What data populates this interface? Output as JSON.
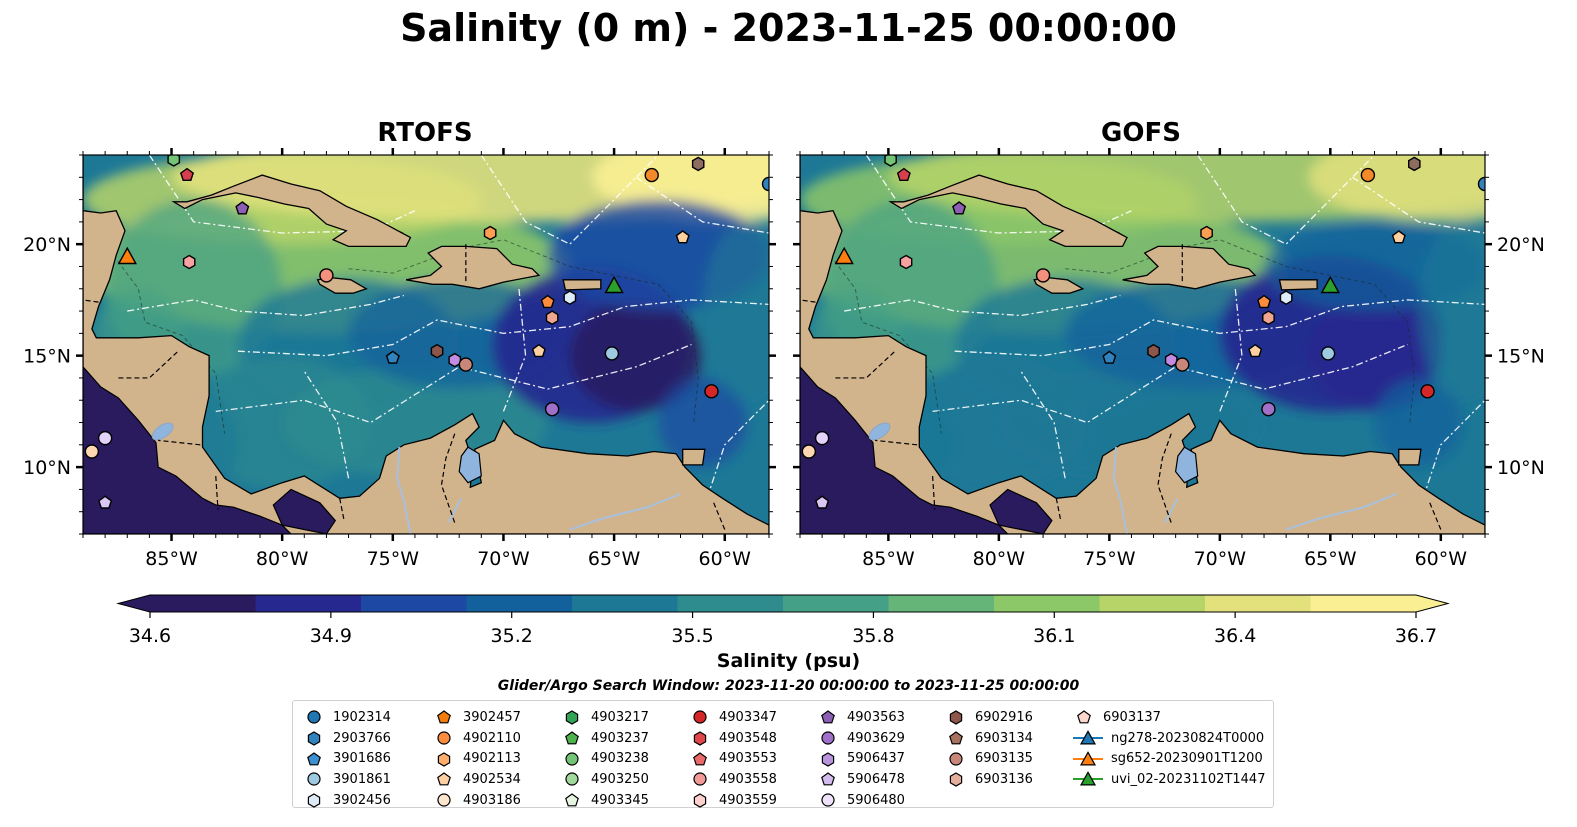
{
  "title": "Salinity (0 m) - 2023-11-25 00:00:00",
  "panels": [
    {
      "name": "RTOFS"
    },
    {
      "name": "GOFS"
    }
  ],
  "chart_data": {
    "type": "heatmap",
    "variable": "Salinity",
    "colorbar": {
      "label": "Salinity (psu)",
      "ticks": [
        "34.6",
        "34.9",
        "35.2",
        "35.5",
        "35.8",
        "36.1",
        "36.4",
        "36.7"
      ],
      "range": [
        34.6,
        36.7
      ],
      "extend": "both",
      "colormap": "haline",
      "colors": [
        "#2a1a5e",
        "#26278f",
        "#1d48a4",
        "#12619d",
        "#1d7896",
        "#2e8c8f",
        "#44a086",
        "#64b577",
        "#8cc768",
        "#b6d468",
        "#e2e17c",
        "#fbef94"
      ]
    },
    "x_ticks": [
      "85°W",
      "80°W",
      "75°W",
      "70°W",
      "65°W",
      "60°W"
    ],
    "x_values": [
      -85,
      -80,
      -75,
      -70,
      -65,
      -60
    ],
    "y_ticks": [
      "20°N",
      "15°N",
      "10°N"
    ],
    "y_values": [
      20,
      15,
      10
    ],
    "xlim": [
      -89,
      -58
    ],
    "ylim": [
      7,
      24
    ],
    "land_color": "#d2b48c",
    "lake_color": "#8fb5df",
    "search_window": "Glider/Argo Search Window: 2023-11-20 00:00:00 to 2023-11-25 00:00:00",
    "markers": [
      {
        "lon": -84.9,
        "lat": 23.8,
        "marker": "hexagon",
        "color": "#74c476"
      },
      {
        "lon": -84.3,
        "lat": 23.1,
        "marker": "pentagon",
        "color": "#d6404e"
      },
      {
        "lon": -81.8,
        "lat": 21.6,
        "marker": "pentagon",
        "color": "#8c5fb4"
      },
      {
        "lon": -87.0,
        "lat": 19.4,
        "marker": "triangle",
        "color": "#ff7f0e"
      },
      {
        "lon": -84.2,
        "lat": 19.2,
        "marker": "hexagon",
        "color": "#f7a1a1"
      },
      {
        "lon": -78.0,
        "lat": 18.6,
        "marker": "circle",
        "color": "#f3917e"
      },
      {
        "lon": -75.0,
        "lat": 14.9,
        "marker": "pentagon",
        "color": "#3182bd"
      },
      {
        "lon": -73.0,
        "lat": 15.2,
        "marker": "hexagon",
        "color": "#8c564b"
      },
      {
        "lon": -72.2,
        "lat": 14.8,
        "marker": "hexagon",
        "color": "#c28ce3"
      },
      {
        "lon": -71.7,
        "lat": 14.6,
        "marker": "circle",
        "color": "#c9877a"
      },
      {
        "lon": -70.6,
        "lat": 20.5,
        "marker": "hexagon",
        "color": "#fd9e52"
      },
      {
        "lon": -68.0,
        "lat": 17.4,
        "marker": "pentagon",
        "color": "#fd8d3c"
      },
      {
        "lon": -68.4,
        "lat": 15.2,
        "marker": "pentagon",
        "color": "#fdd0a2"
      },
      {
        "lon": -67.8,
        "lat": 16.7,
        "marker": "hexagon",
        "color": "#f0a58f"
      },
      {
        "lon": -67.0,
        "lat": 17.6,
        "marker": "hexagon",
        "color": "#dceefa"
      },
      {
        "lon": -65.0,
        "lat": 18.1,
        "marker": "triangle",
        "color": "#2ca02c"
      },
      {
        "lon": -65.1,
        "lat": 15.1,
        "marker": "circle",
        "color": "#9ecae1"
      },
      {
        "lon": -67.8,
        "lat": 12.6,
        "marker": "circle",
        "color": "#a070c8"
      },
      {
        "lon": -63.3,
        "lat": 23.1,
        "marker": "circle",
        "color": "#f38a2a"
      },
      {
        "lon": -61.9,
        "lat": 20.3,
        "marker": "pentagon",
        "color": "#fdd0a2"
      },
      {
        "lon": -61.2,
        "lat": 23.6,
        "marker": "hexagon",
        "color": "#8c6d60"
      },
      {
        "lon": -60.6,
        "lat": 13.4,
        "marker": "circle",
        "color": "#d62728"
      },
      {
        "lon": -58.0,
        "lat": 22.7,
        "marker": "circle",
        "color": "#3182bd"
      },
      {
        "lon": -88.0,
        "lat": 11.3,
        "marker": "circle",
        "color": "#e3d3fb"
      },
      {
        "lon": -88.6,
        "lat": 10.7,
        "marker": "circle",
        "color": "#fdd7b1"
      },
      {
        "lon": -88.0,
        "lat": 8.4,
        "marker": "pentagon",
        "color": "#dac7f5"
      }
    ]
  },
  "legend": {
    "columns": [
      [
        {
          "label": "1902314",
          "marker": "circle",
          "color": "#1f77b4"
        },
        {
          "label": "2903766",
          "marker": "hexagon",
          "color": "#3182bd"
        },
        {
          "label": "3901686",
          "marker": "pentagon",
          "color": "#3d8fd1"
        },
        {
          "label": "3901861",
          "marker": "circle",
          "color": "#9ecae1"
        },
        {
          "label": "3902456",
          "marker": "hexagon",
          "color": "#deebf7"
        }
      ],
      [
        {
          "label": "3902457",
          "marker": "pentagon",
          "color": "#f27d0c"
        },
        {
          "label": "4902110",
          "marker": "circle",
          "color": "#fd8d3c"
        },
        {
          "label": "4902113",
          "marker": "hexagon",
          "color": "#fdae6b"
        },
        {
          "label": "4902534",
          "marker": "pentagon",
          "color": "#fdd0a2"
        },
        {
          "label": "4903186",
          "marker": "circle",
          "color": "#fee6ce"
        }
      ],
      [
        {
          "label": "4903217",
          "marker": "hexagon",
          "color": "#31a354"
        },
        {
          "label": "4903237",
          "marker": "pentagon",
          "color": "#4db34d"
        },
        {
          "label": "4903238",
          "marker": "circle",
          "color": "#74c476"
        },
        {
          "label": "4903250",
          "marker": "circle",
          "color": "#a1d99b"
        },
        {
          "label": "4903345",
          "marker": "pentagon",
          "color": "#e5f5e0"
        }
      ],
      [
        {
          "label": "4903347",
          "marker": "circle",
          "color": "#d62728"
        },
        {
          "label": "4903548",
          "marker": "hexagon",
          "color": "#e0474a"
        },
        {
          "label": "4903553",
          "marker": "pentagon",
          "color": "#ea6a6b"
        },
        {
          "label": "4903558",
          "marker": "circle",
          "color": "#f29a96"
        },
        {
          "label": "4903559",
          "marker": "hexagon",
          "color": "#fbd0cd"
        }
      ],
      [
        {
          "label": "4903563",
          "marker": "pentagon",
          "color": "#8c5fb4"
        },
        {
          "label": "4903629",
          "marker": "circle",
          "color": "#a070c8"
        },
        {
          "label": "5906437",
          "marker": "hexagon",
          "color": "#b993dc"
        },
        {
          "label": "5906478",
          "marker": "pentagon",
          "color": "#d4bbee"
        },
        {
          "label": "5906480",
          "marker": "circle",
          "color": "#efe3fb"
        }
      ],
      [
        {
          "label": "6902916",
          "marker": "hexagon",
          "color": "#8c564b"
        },
        {
          "label": "6903134",
          "marker": "pentagon",
          "color": "#a8725f"
        },
        {
          "label": "6903135",
          "marker": "circle",
          "color": "#c9877a"
        },
        {
          "label": "6903136",
          "marker": "hexagon",
          "color": "#e5ad9c"
        }
      ],
      [
        {
          "label": "6903137",
          "marker": "pentagon",
          "color": "#fdd7cd"
        },
        {
          "label": "ng278-20230824T0000",
          "marker": "triangle-line",
          "color": "#1f77b4"
        },
        {
          "label": "sg652-20230901T1200",
          "marker": "triangle-line",
          "color": "#ff7f0e"
        },
        {
          "label": "uvi_02-20231102T1447",
          "marker": "triangle-line",
          "color": "#2ca02c"
        }
      ]
    ]
  }
}
